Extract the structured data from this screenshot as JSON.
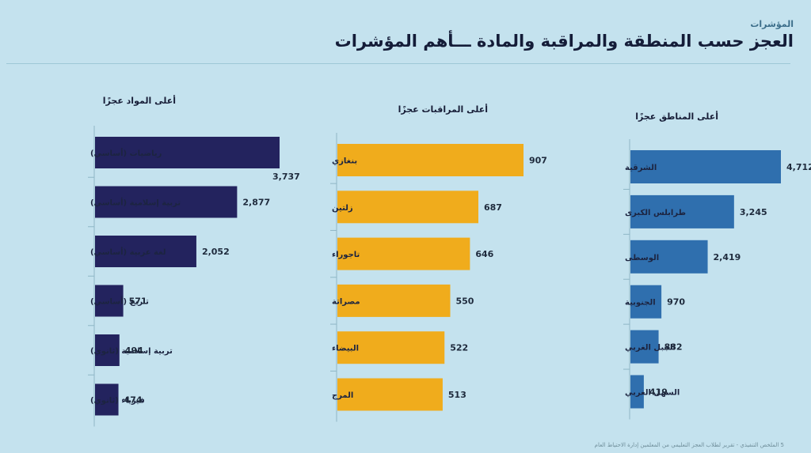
{
  "header": {
    "section_label": "المؤشرات",
    "title": "العجز حسب المنطقة والمراقبة والمادة ـــأهم المؤشرات"
  },
  "footer": {
    "text": "5   الملخص التنفيذي - تقرير لطلاب العجز التعليمي من المعلمين   إدارة الاحتياط العام"
  },
  "colors": {
    "subjects": "#23235e",
    "monitors": "#f0ac1c",
    "regions": "#2f6fae",
    "background": "#c4e2ee"
  },
  "chart_data": [
    {
      "type": "bar",
      "orientation": "horizontal",
      "title": "أعلى المواد عجزًا",
      "categories": [
        "رياضيات (أساسي)",
        "تربية إسلامية (أساسي)",
        "لغة عربية (أساسي)",
        "تاريخ (أساسي)",
        "تربية إسلامية (ثانوي)",
        "فيزياء (ثانوي)"
      ],
      "values": [
        3737,
        2877,
        2052,
        571,
        494,
        474
      ],
      "value_labels": [
        "3,737",
        "2,877",
        "2,052",
        "571",
        "494",
        "474"
      ],
      "color": "#23235e",
      "xlim": [
        0,
        3737
      ]
    },
    {
      "type": "bar",
      "orientation": "horizontal",
      "title": "أعلى المراقبات عجزًا",
      "categories": [
        "بنغازي",
        "زلتين",
        "تاجوراء",
        "مصراتة",
        "البيضاء",
        "المرج"
      ],
      "values": [
        907,
        687,
        646,
        550,
        522,
        513
      ],
      "value_labels": [
        "907",
        "687",
        "646",
        "550",
        "522",
        "513"
      ],
      "color": "#f0ac1c",
      "xlim": [
        0,
        907
      ]
    },
    {
      "type": "bar",
      "orientation": "horizontal",
      "title": "أعلى المناطق عجزًا",
      "categories": [
        "الشرقية",
        "طرابلس الكبرى",
        "الوسطى",
        "الجنوبية",
        "الجبل الغربي",
        "السهل الغربي"
      ],
      "values": [
        4712,
        3245,
        2419,
        970,
        882,
        419
      ],
      "value_labels": [
        "4,712",
        "3,245",
        "2,419",
        "970",
        "882",
        "419"
      ],
      "color": "#2f6fae",
      "xlim": [
        0,
        4712
      ]
    }
  ]
}
